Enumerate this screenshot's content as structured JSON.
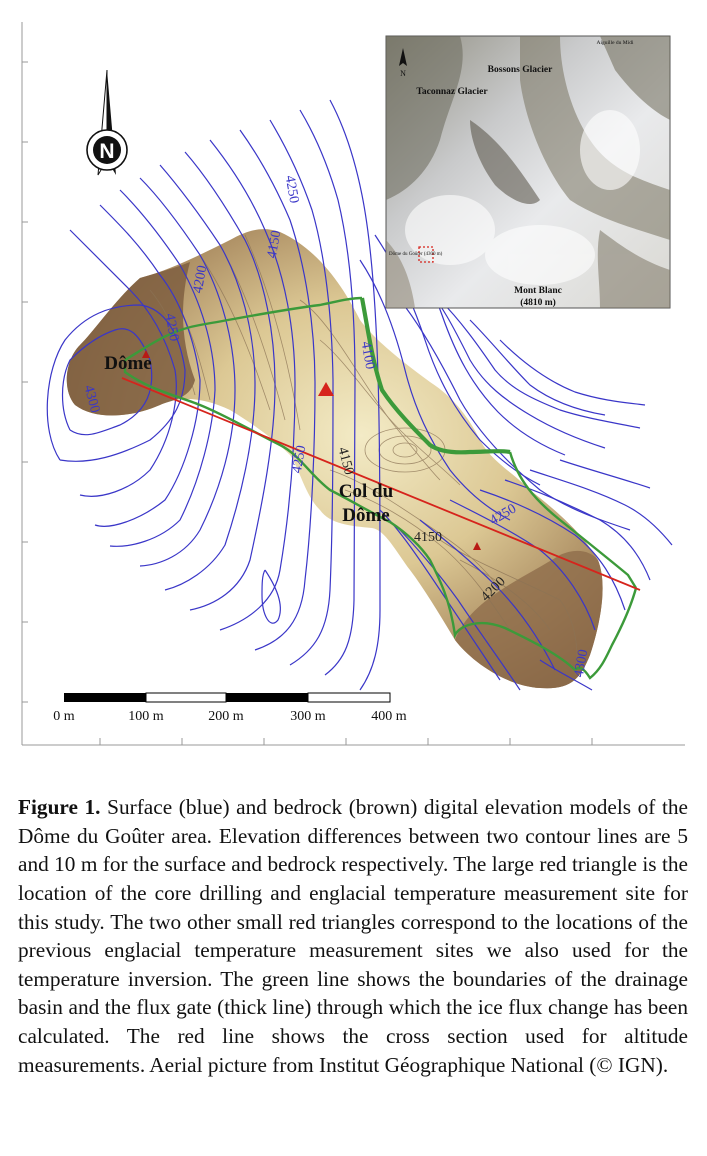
{
  "figure": {
    "north_letter": "N",
    "inset": {
      "north_letter": "N",
      "labels": {
        "aiguille": "Aiguille du Midi",
        "bossons": "Bossons Glacier",
        "taconnaz": "Taconnaz Glacier",
        "dome": "Dôme du Goûter (4300 m)",
        "mont_blanc_name": "Mont Blanc",
        "mont_blanc_alt": "(4810 m)"
      }
    },
    "place_labels": {
      "dome": "Dôme",
      "col_line1": "Col du",
      "col_line2": "Dôme"
    },
    "surface_contour_labels": [
      "4300",
      "4250",
      "4200",
      "4150",
      "4250",
      "4100",
      "4250",
      "4300",
      "4250"
    ],
    "bedrock_contour_labels": [
      "4150",
      "4150",
      "4200"
    ],
    "scale_bar": {
      "ticks": [
        "0 m",
        "100 m",
        "200 m",
        "300 m",
        "400 m"
      ]
    },
    "colors": {
      "surface_contours": "#3a36c8",
      "bedrock_light": "#efe4b8",
      "bedrock_dark": "#8a6a48",
      "basin_boundary": "#3c9a3a",
      "cross_section": "#d6241c",
      "drill_site": "#d6241c"
    }
  },
  "caption": {
    "label": "Figure 1.",
    "text": "Surface (blue) and bedrock (brown) digital elevation models of the Dôme du Goûter area. Elevation differences between two contour lines are 5 and 10 m for the surface and bedrock respectively. The large red triangle is the location of the core drilling and englacial temperature measurement site for this study. The two other small red triangles correspond to the locations of the previous englacial temperature measurement sites we also used for the temperature inversion. The green line shows the boundaries of the drainage basin and the flux gate (thick line) through which the ice flux change has been calculated. The red line shows the cross section used for altitude measurements. Aerial picture from Institut Géographique National (© IGN)."
  }
}
